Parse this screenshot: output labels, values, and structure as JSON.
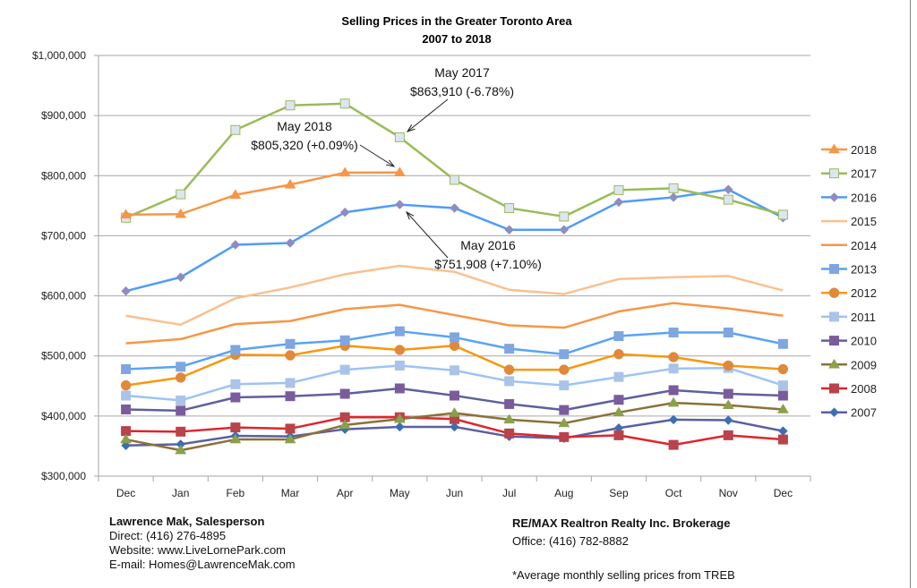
{
  "chart_data": {
    "type": "line",
    "title": "Selling Prices in the Greater Toronto Area",
    "subtitle": "2007 to 2018",
    "xlabel": "",
    "ylabel": "",
    "categories": [
      "Dec",
      "Jan",
      "Feb",
      "Mar",
      "Apr",
      "May",
      "Jun",
      "Jul",
      "Aug",
      "Sep",
      "Oct",
      "Nov",
      "Dec"
    ],
    "ylim": [
      300000,
      1000000
    ],
    "yticks": [
      300000,
      400000,
      500000,
      600000,
      700000,
      800000,
      900000,
      1000000
    ],
    "ytick_labels": [
      "$300,000",
      "$400,000",
      "$500,000",
      "$600,000",
      "$700,000",
      "$800,000",
      "$900,000",
      "$1,000,000"
    ],
    "grid": true,
    "legend_position": "right",
    "series": [
      {
        "name": "2018",
        "color": "#F79646",
        "marker": "triangle",
        "marker_color": "#F79646",
        "values": [
          735000,
          736000,
          768000,
          785000,
          805000,
          805320,
          null,
          null,
          null,
          null,
          null,
          null,
          null
        ]
      },
      {
        "name": "2017",
        "color": "#9BBB59",
        "marker": "square",
        "marker_color": "#DCE6F2",
        "values": [
          730000,
          769000,
          876000,
          917000,
          920000,
          863910,
          793000,
          746000,
          732000,
          776000,
          779000,
          760000,
          735000
        ]
      },
      {
        "name": "2016",
        "color": "#4F9CF9",
        "marker": "diamond",
        "marker_color": "#8E8CC0",
        "values": [
          608000,
          631000,
          685000,
          688000,
          739000,
          751908,
          746000,
          710000,
          710000,
          756000,
          764000,
          777000,
          730000
        ]
      },
      {
        "name": "2015",
        "color": "#FAC090",
        "marker": "none",
        "marker_color": "#FAC090",
        "values": [
          567000,
          552000,
          596000,
          614000,
          636000,
          650000,
          640000,
          610000,
          603000,
          628000,
          631000,
          633000,
          609000
        ]
      },
      {
        "name": "2014",
        "color": "#F79646",
        "marker": "none",
        "marker_color": "#F79646",
        "values": [
          521000,
          528000,
          553000,
          558000,
          578000,
          585000,
          568000,
          551000,
          547000,
          574000,
          588000,
          579000,
          567000
        ]
      },
      {
        "name": "2013",
        "color": "#58A3F5",
        "marker": "square",
        "marker_color": "#7FA6E0",
        "values": [
          478000,
          482000,
          510000,
          520000,
          526000,
          541000,
          531000,
          512000,
          503000,
          533000,
          539000,
          539000,
          520000
        ]
      },
      {
        "name": "2012",
        "color": "#F8970C",
        "marker": "circle",
        "marker_color": "#E0893A",
        "values": [
          451000,
          464000,
          502000,
          501000,
          517000,
          510000,
          517000,
          477000,
          477000,
          503000,
          498000,
          484000,
          478000
        ]
      },
      {
        "name": "2011",
        "color": "#9DC3F5",
        "marker": "square",
        "marker_color": "#A9C4E8",
        "values": [
          434000,
          426000,
          453000,
          455000,
          477000,
          484000,
          476000,
          458000,
          451000,
          465000,
          479000,
          480000,
          451000
        ]
      },
      {
        "name": "2010",
        "color": "#5F5F9E",
        "marker": "square",
        "marker_color": "#7A5C9C",
        "values": [
          411000,
          409000,
          431000,
          433000,
          437000,
          446000,
          434000,
          420000,
          410000,
          427000,
          443000,
          437000,
          434000
        ]
      },
      {
        "name": "2009",
        "color": "#8C7038",
        "marker": "triangle",
        "marker_color": "#8AA04A",
        "values": [
          361000,
          343000,
          361000,
          361000,
          385000,
          395000,
          405000,
          394000,
          388000,
          406000,
          422000,
          418000,
          411000
        ]
      },
      {
        "name": "2008",
        "color": "#E0242C",
        "marker": "square",
        "marker_color": "#B8434A",
        "values": [
          375000,
          374000,
          381000,
          379000,
          398000,
          398000,
          395000,
          371000,
          365000,
          368000,
          352000,
          368000,
          361000
        ]
      },
      {
        "name": "2007",
        "color": "#5A5FA0",
        "marker": "diamond",
        "marker_color": "#3C6EB4",
        "values": [
          351000,
          353000,
          367000,
          366000,
          378000,
          382000,
          382000,
          366000,
          363000,
          380000,
          394000,
          393000,
          375000
        ]
      }
    ],
    "annotations": [
      {
        "series": "2017",
        "category_index": 5,
        "line1": "May 2017",
        "line2": "$863,910 (-6.78%)"
      },
      {
        "series": "2018",
        "category_index": 5,
        "line1": "May 2018",
        "line2": "$805,320 (+0.09%)"
      },
      {
        "series": "2016",
        "category_index": 5,
        "line1": "May 2016",
        "line2": "$751,908 (+7.10%)"
      }
    ]
  },
  "footer": {
    "agent_name": "Lawrence Mak, Salesperson",
    "direct": "Direct:  (416) 276-4895",
    "website": "Website:  www.LiveLornePark.com",
    "email": "E-mail:  Homes@LawrenceMak.com",
    "brokerage": "RE/MAX Realtron Realty Inc. Brokerage",
    "office": "Office: (416) 782-8882",
    "note": "*Average monthly selling prices from TREB"
  }
}
